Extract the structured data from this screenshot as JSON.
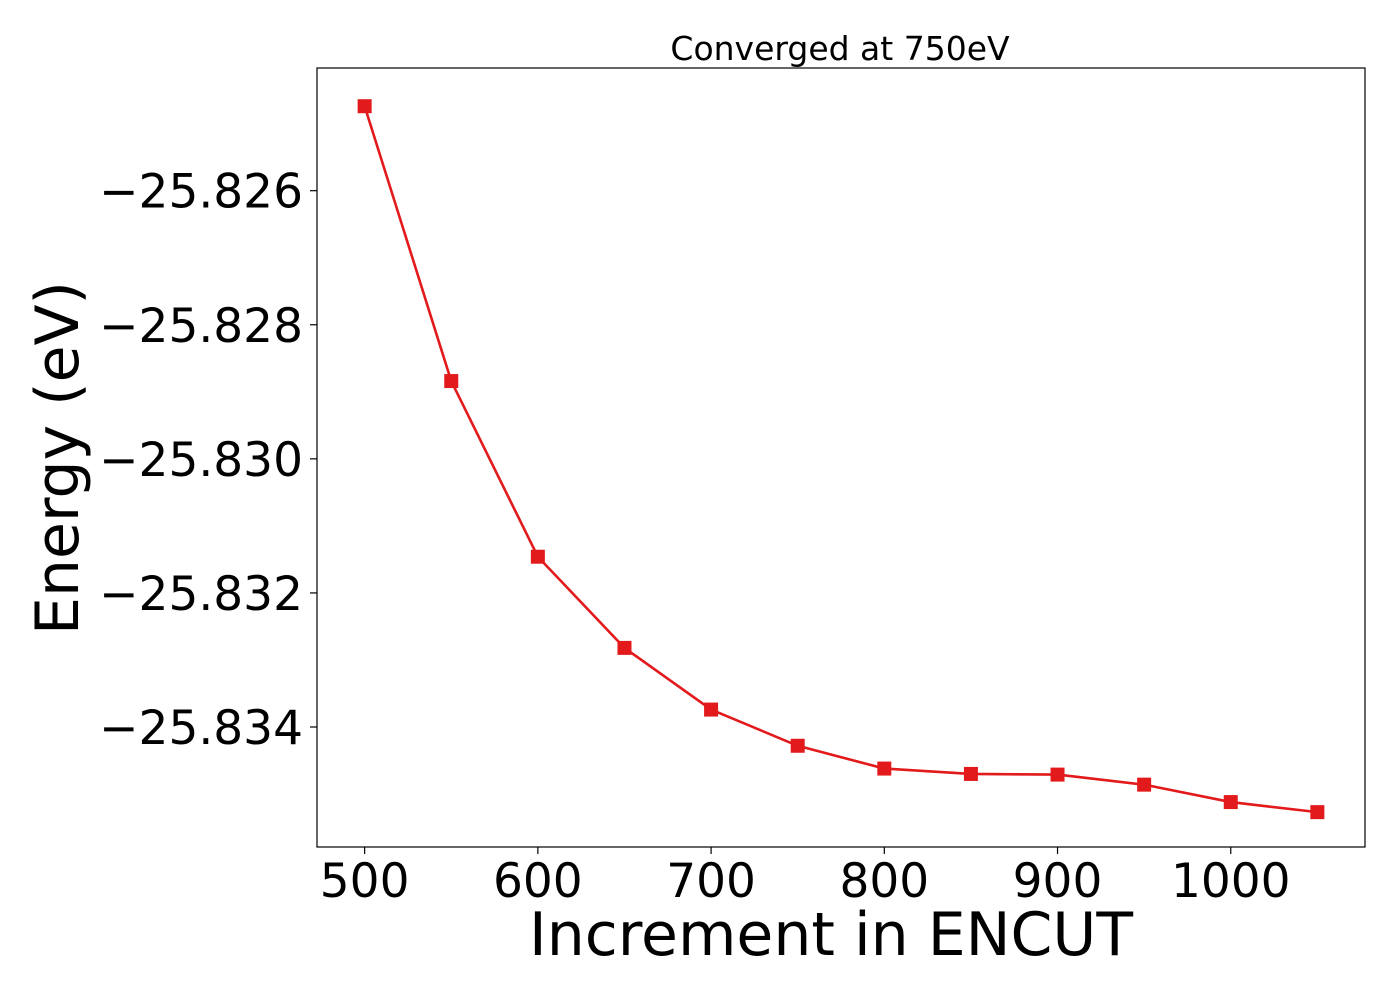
{
  "chart_data": {
    "type": "line",
    "title": "Converged at 750eV",
    "xlabel": "Increment in ENCUT",
    "ylabel": "Energy (eV)",
    "x": [
      500,
      550,
      600,
      650,
      700,
      750,
      800,
      850,
      900,
      950,
      1000,
      1050
    ],
    "series": [
      {
        "values": [
          -25.82474,
          -25.82884,
          -25.83146,
          -25.83282,
          -25.83374,
          -25.83428,
          -25.83462,
          -25.8347,
          -25.83471,
          -25.83486,
          -25.83512,
          -25.83527
        ],
        "color": "#e31a1c",
        "marker": "square"
      }
    ],
    "xlim": [
      472.5,
      1077.5
    ],
    "ylim": [
      -25.83579,
      -25.82417
    ],
    "xticks": [
      500,
      600,
      700,
      800,
      900,
      1000
    ],
    "xtick_labels": [
      "500",
      "600",
      "700",
      "800",
      "900",
      "1000"
    ],
    "yticks": [
      -25.826,
      -25.828,
      -25.83,
      -25.832,
      -25.834
    ],
    "ytick_labels": [
      "−25.826",
      "−25.828",
      "−25.830",
      "−25.832",
      "−25.834"
    ],
    "grid": false,
    "legend": "none"
  }
}
